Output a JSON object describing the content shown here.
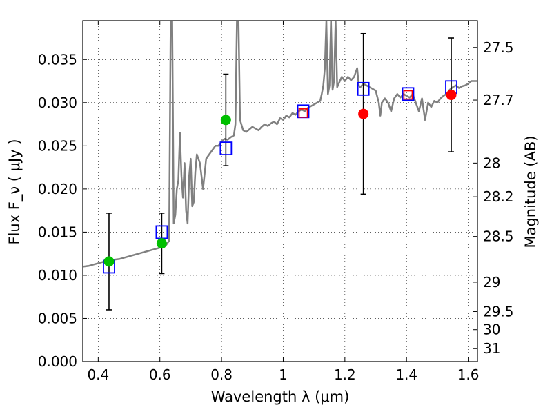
{
  "chart_data": {
    "type": "line",
    "xlabel": "Wavelength  λ (μm)",
    "ylabel": "Flux  F_ν  ( μJy )",
    "ylabel_right": "Magnitude (AB)",
    "xlim": [
      0.35,
      1.63
    ],
    "ylim": [
      0.0,
      0.0395
    ],
    "grid": true,
    "x_ticks": [
      0.4,
      0.6,
      0.8,
      1.0,
      1.2,
      1.4,
      1.6
    ],
    "x_tick_labels": [
      "0.4",
      "0.6",
      "0.8",
      "1",
      "1.2",
      "1.4",
      "1.6"
    ],
    "y_ticks": [
      0.0,
      0.005,
      0.01,
      0.015,
      0.02,
      0.025,
      0.03,
      0.035
    ],
    "y_tick_labels": [
      "0.000",
      "0.005",
      "0.010",
      "0.015",
      "0.020",
      "0.025",
      "0.030",
      "0.035"
    ],
    "right_ticks": [
      {
        "label": "27.5",
        "flux": 0.0364
      },
      {
        "label": "27.7",
        "flux": 0.0303
      },
      {
        "label": "28",
        "flux": 0.023
      },
      {
        "label": "28.2",
        "flux": 0.0191
      },
      {
        "label": "28.5",
        "flux": 0.0145
      },
      {
        "label": "29",
        "flux": 0.0092
      },
      {
        "label": "29.5",
        "flux": 0.0058
      },
      {
        "label": "30",
        "flux": 0.0037
      },
      {
        "label": "31",
        "flux": 0.0015
      }
    ],
    "spectrum": {
      "color": "#808080",
      "points": [
        [
          0.35,
          0.011
        ],
        [
          0.37,
          0.0111
        ],
        [
          0.39,
          0.0113
        ],
        [
          0.41,
          0.0115
        ],
        [
          0.43,
          0.0117
        ],
        [
          0.45,
          0.0118
        ],
        [
          0.47,
          0.0119
        ],
        [
          0.49,
          0.0121
        ],
        [
          0.51,
          0.0123
        ],
        [
          0.53,
          0.0125
        ],
        [
          0.55,
          0.0127
        ],
        [
          0.57,
          0.0129
        ],
        [
          0.59,
          0.0131
        ],
        [
          0.61,
          0.0133
        ],
        [
          0.62,
          0.0135
        ],
        [
          0.63,
          0.014
        ],
        [
          0.635,
          0.0395
        ],
        [
          0.64,
          0.0395
        ],
        [
          0.645,
          0.016
        ],
        [
          0.65,
          0.017
        ],
        [
          0.655,
          0.02
        ],
        [
          0.66,
          0.021
        ],
        [
          0.665,
          0.0265
        ],
        [
          0.67,
          0.0215
        ],
        [
          0.675,
          0.019
        ],
        [
          0.68,
          0.023
        ],
        [
          0.685,
          0.0175
        ],
        [
          0.69,
          0.016
        ],
        [
          0.695,
          0.0215
        ],
        [
          0.7,
          0.0235
        ],
        [
          0.705,
          0.018
        ],
        [
          0.71,
          0.0185
        ],
        [
          0.715,
          0.022
        ],
        [
          0.72,
          0.024
        ],
        [
          0.73,
          0.023
        ],
        [
          0.74,
          0.02
        ],
        [
          0.75,
          0.0235
        ],
        [
          0.76,
          0.024
        ],
        [
          0.77,
          0.0245
        ],
        [
          0.78,
          0.025
        ],
        [
          0.79,
          0.025
        ],
        [
          0.8,
          0.0255
        ],
        [
          0.81,
          0.0258
        ],
        [
          0.82,
          0.0257
        ],
        [
          0.83,
          0.026
        ],
        [
          0.84,
          0.0262
        ],
        [
          0.845,
          0.0275
        ],
        [
          0.85,
          0.0395
        ],
        [
          0.855,
          0.0395
        ],
        [
          0.86,
          0.028
        ],
        [
          0.87,
          0.0268
        ],
        [
          0.88,
          0.0266
        ],
        [
          0.89,
          0.0269
        ],
        [
          0.9,
          0.0272
        ],
        [
          0.91,
          0.027
        ],
        [
          0.92,
          0.0268
        ],
        [
          0.93,
          0.0272
        ],
        [
          0.94,
          0.0275
        ],
        [
          0.95,
          0.0273
        ],
        [
          0.96,
          0.0276
        ],
        [
          0.97,
          0.0278
        ],
        [
          0.98,
          0.0275
        ],
        [
          0.99,
          0.0282
        ],
        [
          1.0,
          0.028
        ],
        [
          1.01,
          0.0285
        ],
        [
          1.02,
          0.0283
        ],
        [
          1.03,
          0.0288
        ],
        [
          1.04,
          0.0286
        ],
        [
          1.05,
          0.029
        ],
        [
          1.06,
          0.0292
        ],
        [
          1.07,
          0.029
        ],
        [
          1.08,
          0.0294
        ],
        [
          1.09,
          0.0296
        ],
        [
          1.1,
          0.0298
        ],
        [
          1.11,
          0.03
        ],
        [
          1.12,
          0.0302
        ],
        [
          1.125,
          0.031
        ],
        [
          1.13,
          0.032
        ],
        [
          1.135,
          0.034
        ],
        [
          1.14,
          0.0395
        ],
        [
          1.145,
          0.031
        ],
        [
          1.15,
          0.032
        ],
        [
          1.155,
          0.0395
        ],
        [
          1.16,
          0.0315
        ],
        [
          1.165,
          0.0325
        ],
        [
          1.17,
          0.0395
        ],
        [
          1.175,
          0.0318
        ],
        [
          1.18,
          0.0322
        ],
        [
          1.19,
          0.033
        ],
        [
          1.2,
          0.0325
        ],
        [
          1.21,
          0.033
        ],
        [
          1.22,
          0.0326
        ],
        [
          1.23,
          0.033
        ],
        [
          1.24,
          0.034
        ],
        [
          1.245,
          0.032
        ],
        [
          1.25,
          0.0318
        ],
        [
          1.26,
          0.0322
        ],
        [
          1.27,
          0.032
        ],
        [
          1.28,
          0.0318
        ],
        [
          1.29,
          0.0316
        ],
        [
          1.3,
          0.0314
        ],
        [
          1.31,
          0.03
        ],
        [
          1.315,
          0.0285
        ],
        [
          1.32,
          0.03
        ],
        [
          1.33,
          0.0305
        ],
        [
          1.34,
          0.03
        ],
        [
          1.35,
          0.029
        ],
        [
          1.36,
          0.0305
        ],
        [
          1.37,
          0.031
        ],
        [
          1.38,
          0.0306
        ],
        [
          1.39,
          0.031
        ],
        [
          1.4,
          0.0308
        ],
        [
          1.41,
          0.0306
        ],
        [
          1.42,
          0.031
        ],
        [
          1.43,
          0.03
        ],
        [
          1.44,
          0.029
        ],
        [
          1.45,
          0.0305
        ],
        [
          1.46,
          0.028
        ],
        [
          1.47,
          0.03
        ],
        [
          1.48,
          0.0295
        ],
        [
          1.49,
          0.0302
        ],
        [
          1.5,
          0.03
        ],
        [
          1.51,
          0.0305
        ],
        [
          1.52,
          0.0308
        ],
        [
          1.53,
          0.031
        ],
        [
          1.54,
          0.0315
        ],
        [
          1.55,
          0.0318
        ],
        [
          1.56,
          0.032
        ],
        [
          1.57,
          0.0317
        ],
        [
          1.58,
          0.0319
        ],
        [
          1.59,
          0.032
        ],
        [
          1.6,
          0.0322
        ],
        [
          1.61,
          0.0325
        ],
        [
          1.62,
          0.0325
        ],
        [
          1.63,
          0.0325
        ]
      ]
    },
    "model_points": {
      "color": "#0000ff",
      "x": [
        0.435,
        0.606,
        0.814,
        1.065,
        1.26,
        1.405,
        1.545
      ],
      "y": [
        0.011,
        0.015,
        0.0247,
        0.029,
        0.0316,
        0.031,
        0.0318
      ]
    },
    "observed_green": {
      "color": "#00c000",
      "x": [
        0.435,
        0.606,
        0.814
      ],
      "y": [
        0.0116,
        0.0137,
        0.028
      ],
      "yerr": [
        0.0056,
        0.0035,
        0.0053
      ]
    },
    "observed_red": {
      "color": "#ff0000",
      "x": [
        1.065,
        1.26,
        1.405,
        1.545
      ],
      "y": [
        0.0288,
        0.0287,
        0.0309,
        0.0309
      ],
      "yerr": [
        0.0,
        0.0093,
        0.0,
        0.0066
      ],
      "marker": [
        "square",
        "circle",
        "square",
        "circle"
      ]
    }
  }
}
